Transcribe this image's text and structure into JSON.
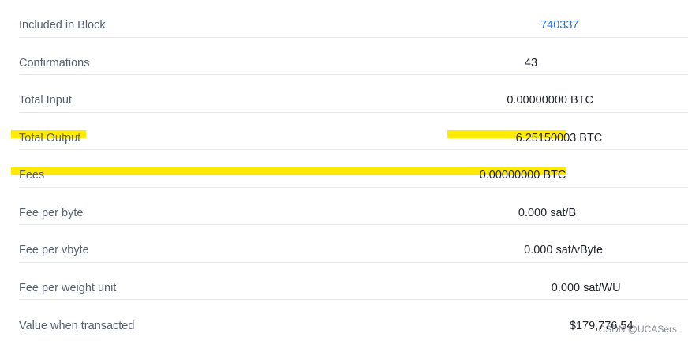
{
  "rows": [
    {
      "label": "Included in Block",
      "value": "740337",
      "link": true,
      "highlight": false
    },
    {
      "label": "Confirmations",
      "value": "43",
      "link": false,
      "highlight": false
    },
    {
      "label": "Total Input",
      "value": "0.00000000 BTC",
      "link": false,
      "highlight": false
    },
    {
      "label": "Total Output",
      "value": "6.25150003 BTC",
      "link": false,
      "highlight": true
    },
    {
      "label": "Fees",
      "value": "0.00000000 BTC",
      "link": false,
      "highlight": true
    },
    {
      "label": "Fee per byte",
      "value": "0.000 sat/B",
      "link": false,
      "highlight": false
    },
    {
      "label": "Fee per vbyte",
      "value": "0.000 sat/vByte",
      "link": false,
      "highlight": false
    },
    {
      "label": "Fee per weight unit",
      "value": "0.000 sat/WU",
      "link": false,
      "highlight": false
    },
    {
      "label": "Value when transacted",
      "value": "$179,776.54",
      "link": false,
      "highlight": false
    }
  ],
  "watermark": "CSDN @UCASers",
  "colors": {
    "label": "#56606e",
    "value": "#1f2329",
    "link": "#2f6fd6",
    "highlight": "#ffea00",
    "divider": "#e6e8ec"
  }
}
